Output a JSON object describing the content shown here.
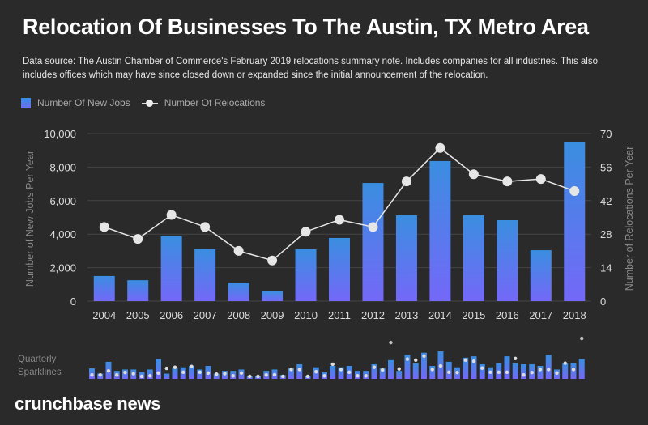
{
  "title": "Relocation Of Businesses To The Austin, TX Metro Area",
  "subtitle": "Data source: The Austin Chamber of Commerce's February 2019 relocations summary note. Includes companies for all industries. This also includes offices which may have since closed down or expanded since the initial announcement of the relocation.",
  "brand": "crunchbase news",
  "sparkline_label": [
    "Quarterly",
    "Sparklines"
  ],
  "colors": {
    "background": "#2a2a2a",
    "bar_top": "#3a8ee0",
    "bar_bottom": "#7468f8",
    "line": "#e6e6e6"
  },
  "chart_data": [
    {
      "type": "bar+line",
      "legend": {
        "position": "top-left",
        "entries": [
          "Number Of New Jobs",
          "Number Of Relocations"
        ]
      },
      "categories": [
        "2004",
        "2005",
        "2006",
        "2007",
        "2008",
        "2009",
        "2010",
        "2011",
        "2012",
        "2013",
        "2014",
        "2015",
        "2016",
        "2017",
        "2018"
      ],
      "series": [
        {
          "name": "Number Of New Jobs",
          "type": "bar",
          "axis": "left",
          "values": [
            1500,
            1250,
            3870,
            3100,
            1100,
            580,
            3100,
            3770,
            7050,
            5120,
            8360,
            5120,
            4830,
            3040,
            9470
          ]
        },
        {
          "name": "Number Of Relocations",
          "type": "line",
          "axis": "right",
          "values": [
            31,
            26,
            36,
            31,
            21,
            17,
            29,
            34,
            31,
            50,
            64,
            53,
            50,
            51,
            46
          ]
        }
      ],
      "ylabel_left": "Number of New Jobs Per Year",
      "ylabel_right": "Number of Relocations Per Year",
      "ylim_left": [
        0,
        10000
      ],
      "ylim_right": [
        0,
        70
      ],
      "yticks_left": [
        "0",
        "2,000",
        "4,000",
        "6,000",
        "8,000",
        "10,000"
      ],
      "yticks_right": [
        "0",
        "14",
        "28",
        "42",
        "56",
        "70"
      ],
      "grid": true
    },
    {
      "type": "sparkline-bar+dots",
      "name": "Quarterly Sparklines",
      "bars": [
        0.38,
        0.19,
        0.62,
        0.29,
        0.34,
        0.34,
        0.24,
        0.34,
        0.72,
        0.19,
        0.38,
        0.42,
        0.47,
        0.34,
        0.47,
        0.19,
        0.29,
        0.29,
        0.34,
        0.11,
        0.11,
        0.29,
        0.34,
        0.14,
        0.38,
        0.53,
        0.11,
        0.42,
        0.24,
        0.47,
        0.42,
        0.47,
        0.29,
        0.29,
        0.53,
        0.38,
        0.68,
        0.29,
        0.87,
        0.57,
        0.95,
        0.47,
        1.0,
        0.62,
        0.42,
        0.77,
        0.82,
        0.53,
        0.42,
        0.57,
        0.82,
        0.57,
        0.53,
        0.53,
        0.47,
        0.87,
        0.34,
        0.57,
        0.57,
        0.72
      ],
      "dots": [
        0.14,
        0.14,
        0.29,
        0.14,
        0.23,
        0.19,
        0.09,
        0.11,
        0.21,
        0.38,
        0.42,
        0.24,
        0.45,
        0.24,
        0.21,
        0.17,
        0.19,
        0.11,
        0.21,
        0.09,
        0.09,
        0.14,
        0.15,
        0.09,
        0.34,
        0.34,
        0.09,
        0.26,
        0.11,
        0.53,
        0.34,
        0.24,
        0.11,
        0.11,
        0.42,
        0.32,
        1.32,
        0.36,
        0.72,
        0.68,
        0.83,
        0.34,
        0.47,
        0.24,
        0.23,
        0.68,
        0.64,
        0.39,
        0.24,
        0.24,
        0.24,
        0.74,
        0.14,
        0.23,
        0.34,
        0.34,
        0.21,
        0.57,
        0.34,
        1.47
      ]
    }
  ]
}
